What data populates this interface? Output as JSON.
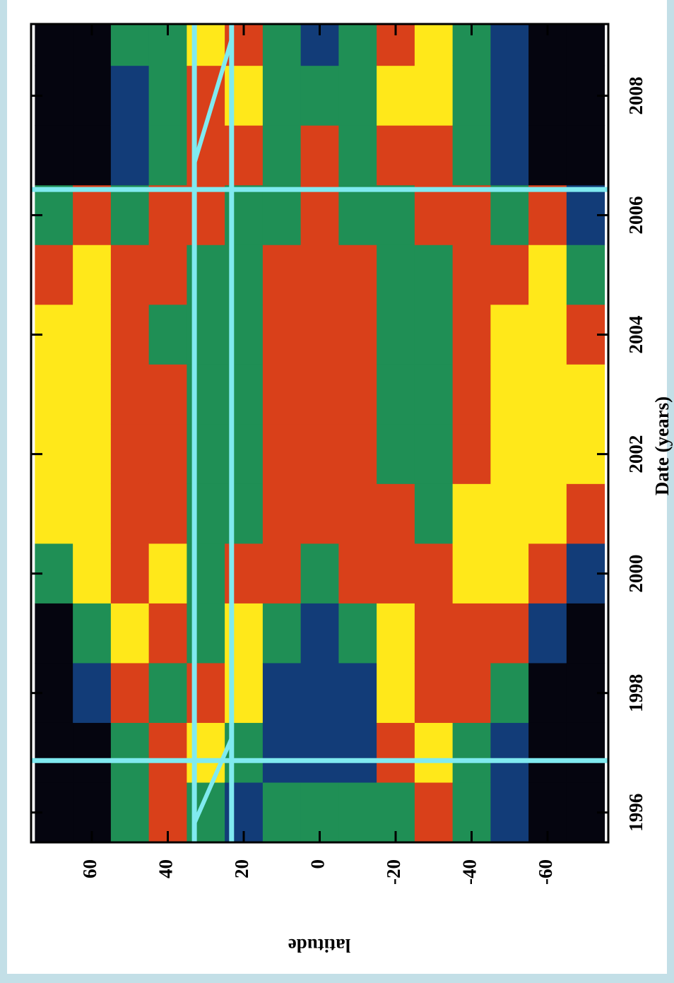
{
  "chart_data": {
    "type": "heatmap",
    "x_label": "Date (years)",
    "y_label": "latitude",
    "x": [
      1996,
      1997,
      1998,
      1999,
      2000,
      2001,
      2002,
      2003,
      2004,
      2005,
      2006,
      2007,
      2008,
      2009
    ],
    "y": [
      70,
      60,
      50,
      40,
      30,
      20,
      10,
      0,
      -10,
      -20,
      -30,
      -40,
      -50,
      -60,
      -70
    ],
    "z": [
      [
        0,
        0,
        0,
        0,
        2,
        4,
        4,
        4,
        4,
        3,
        2,
        0,
        0,
        0
      ],
      [
        0,
        0,
        1,
        2,
        4,
        4,
        4,
        4,
        4,
        4,
        3,
        0,
        0,
        0
      ],
      [
        2,
        2,
        3,
        4,
        3,
        3,
        3,
        3,
        3,
        3,
        2,
        1,
        1,
        2
      ],
      [
        3,
        3,
        2,
        3,
        4,
        3,
        3,
        3,
        2,
        3,
        3,
        2,
        2,
        2
      ],
      [
        2,
        4,
        3,
        2,
        2,
        2,
        2,
        2,
        2,
        2,
        3,
        3,
        3,
        4
      ],
      [
        1,
        2,
        4,
        4,
        3,
        2,
        2,
        2,
        2,
        2,
        2,
        3,
        4,
        3
      ],
      [
        2,
        1,
        1,
        2,
        3,
        3,
        3,
        3,
        3,
        3,
        2,
        2,
        2,
        2
      ],
      [
        2,
        1,
        1,
        1,
        2,
        3,
        3,
        3,
        3,
        3,
        3,
        3,
        2,
        1
      ],
      [
        2,
        1,
        1,
        2,
        3,
        3,
        3,
        3,
        3,
        3,
        2,
        2,
        2,
        2
      ],
      [
        2,
        3,
        4,
        4,
        3,
        3,
        2,
        2,
        2,
        2,
        2,
        3,
        4,
        3
      ],
      [
        3,
        4,
        3,
        3,
        3,
        2,
        2,
        2,
        2,
        2,
        3,
        3,
        4,
        4
      ],
      [
        2,
        2,
        3,
        3,
        4,
        4,
        3,
        3,
        3,
        3,
        3,
        2,
        2,
        2
      ],
      [
        1,
        1,
        2,
        3,
        4,
        4,
        4,
        4,
        4,
        3,
        2,
        1,
        1,
        1
      ],
      [
        0,
        0,
        0,
        1,
        3,
        4,
        4,
        4,
        4,
        4,
        3,
        0,
        0,
        0
      ],
      [
        0,
        0,
        0,
        0,
        1,
        3,
        4,
        4,
        3,
        2,
        1,
        0,
        0,
        0
      ]
    ],
    "colormap": [
      "#05050f",
      "#123c78",
      "#1f8f55",
      "#d9401a",
      "#ffe81a"
    ],
    "xlim": [
      1995.5,
      2009.2
    ],
    "ylim": [
      -76,
      76
    ],
    "xticks": [
      1996,
      1998,
      2000,
      2002,
      2004,
      2006,
      2008
    ],
    "yticks": [
      60,
      40,
      20,
      0,
      -20,
      -40,
      -60
    ],
    "vlines": [
      1996.87,
      2006.43
    ],
    "hlines": [
      33,
      23.2
    ],
    "segments": [
      [
        [
          1995.82,
          33
        ],
        [
          1997.24,
          23.2
        ]
      ],
      [
        [
          2006.87,
          33
        ],
        [
          2008.94,
          23.2
        ]
      ]
    ],
    "line_color": "#80eaf0"
  }
}
